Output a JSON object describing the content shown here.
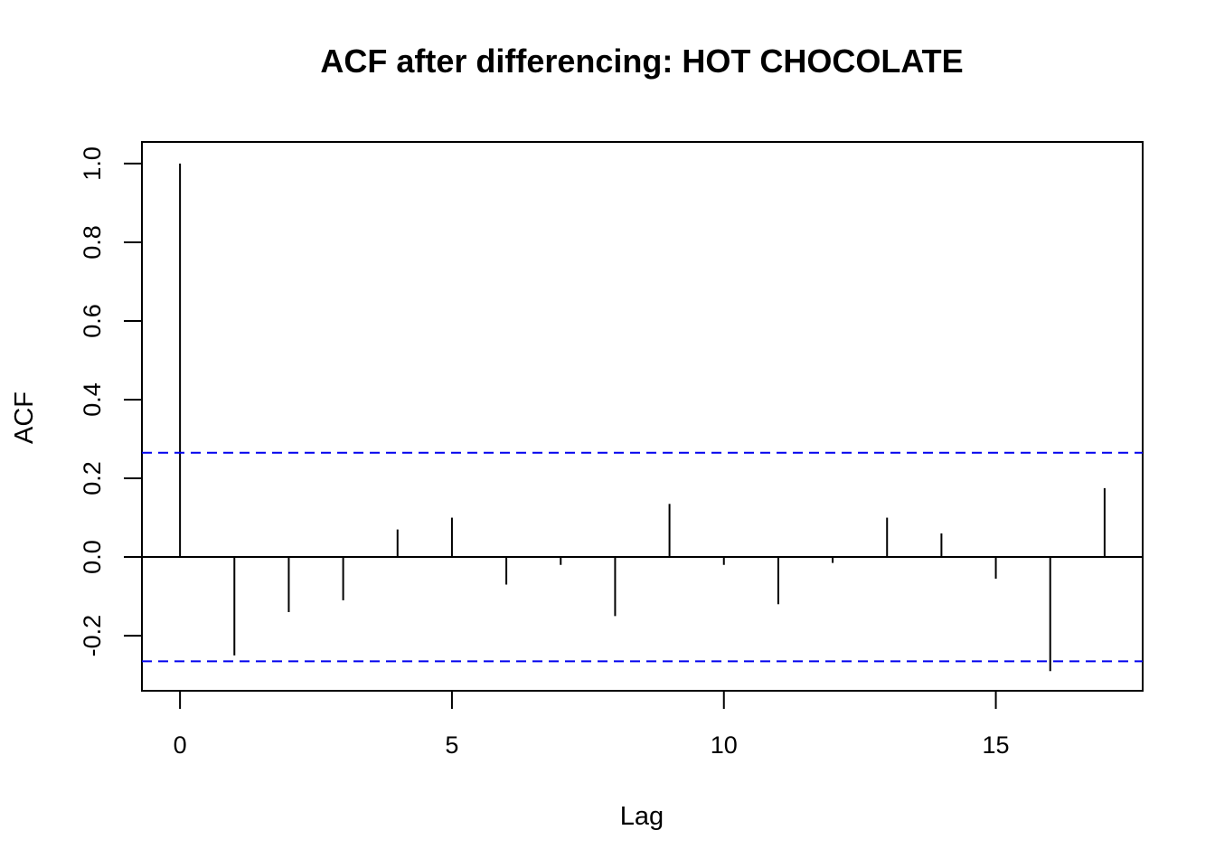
{
  "chart_data": {
    "type": "acf",
    "title": "ACF after differencing: HOT CHOCOLATE",
    "xlabel": "Lag",
    "ylabel": "ACF",
    "xlim": [
      -0.7,
      17.7
    ],
    "ylim": [
      -0.34,
      1.055
    ],
    "x_ticks": [
      0,
      5,
      10,
      15
    ],
    "y_ticks": [
      -0.2,
      0.0,
      0.2,
      0.4,
      0.6,
      0.8,
      1.0
    ],
    "y_tick_labels": [
      "-0.2",
      "0.0",
      "0.2",
      "0.4",
      "0.6",
      "0.8",
      "1.0"
    ],
    "lags": [
      0,
      1,
      2,
      3,
      4,
      5,
      6,
      7,
      8,
      9,
      10,
      11,
      12,
      13,
      14,
      15,
      16,
      17
    ],
    "values": [
      1.0,
      -0.25,
      -0.14,
      -0.11,
      0.07,
      0.1,
      -0.07,
      -0.02,
      -0.15,
      0.135,
      -0.02,
      -0.12,
      -0.015,
      0.1,
      0.06,
      -0.055,
      -0.29,
      0.175
    ],
    "confidence_bounds": [
      0.265,
      -0.265
    ],
    "confidence_color": "#0000ee",
    "bar_color": "#000000",
    "grid": false,
    "legend": "none"
  }
}
